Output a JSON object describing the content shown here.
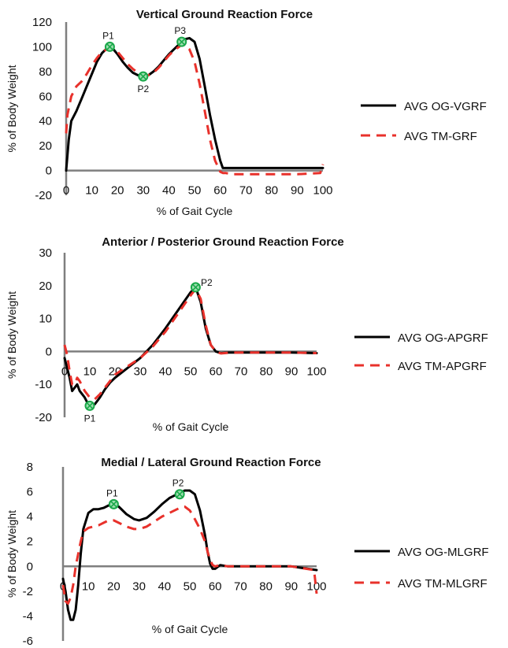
{
  "chart_data": [
    {
      "type": "line",
      "title": "Vertical Ground Reaction Force",
      "xlabel": "% of Gait Cycle",
      "ylabel": "% of Body Weight",
      "xlim": [
        0,
        100
      ],
      "ylim": [
        -20,
        120
      ],
      "xticks": [
        "0",
        "10",
        "20",
        "30",
        "40",
        "50",
        "60",
        "70",
        "80",
        "90",
        "100"
      ],
      "yticks": [
        "-20",
        "0",
        "20",
        "40",
        "60",
        "80",
        "100",
        "120"
      ],
      "legend_position": "right",
      "series": [
        {
          "name": "AVG OG-VGRF",
          "style": "solid",
          "color": "#000000",
          "x": [
            0,
            1,
            2,
            4,
            6,
            8,
            10,
            12,
            14,
            16,
            17,
            18,
            20,
            22,
            24,
            26,
            28,
            30,
            32,
            34,
            36,
            38,
            40,
            42,
            44,
            45,
            46,
            48,
            50,
            52,
            54,
            56,
            58,
            60,
            61,
            62,
            65,
            70,
            80,
            90,
            100
          ],
          "y": [
            0,
            25,
            40,
            48,
            58,
            68,
            78,
            88,
            95,
            99,
            100,
            99,
            94,
            88,
            83,
            79,
            77,
            76,
            77,
            80,
            84,
            89,
            94,
            98,
            102,
            104,
            106,
            107,
            104,
            90,
            68,
            45,
            25,
            8,
            2,
            2,
            2,
            2,
            2,
            2,
            2
          ]
        },
        {
          "name": "AVG TM-GRF",
          "style": "dashed",
          "color": "#e8312b",
          "x": [
            0,
            0.5,
            2,
            4,
            6,
            8,
            10,
            12,
            14,
            16,
            18,
            20,
            22,
            24,
            26,
            28,
            30,
            32,
            34,
            36,
            38,
            40,
            42,
            44,
            45,
            46,
            48,
            50,
            52,
            54,
            56,
            58,
            60,
            61,
            62,
            65,
            70,
            80,
            90,
            99,
            100
          ],
          "y": [
            30,
            45,
            60,
            68,
            72,
            78,
            85,
            91,
            96,
            98,
            99,
            96,
            91,
            86,
            82,
            79,
            77,
            77,
            79,
            83,
            88,
            93,
            97,
            100,
            102,
            102,
            98,
            88,
            70,
            48,
            25,
            8,
            -1,
            -2,
            -2,
            -3,
            -3,
            -3,
            -3,
            -2,
            5
          ]
        }
      ],
      "annotations": [
        {
          "label": "P1",
          "x": 17,
          "y": 100
        },
        {
          "label": "P2",
          "x": 30,
          "y": 76
        },
        {
          "label": "P3",
          "x": 45,
          "y": 104
        }
      ]
    },
    {
      "type": "line",
      "title": "Anterior / Posterior Ground Reaction Force",
      "xlabel": "% of Gait Cycle",
      "ylabel": "% of Body Weight",
      "xlim": [
        0,
        100
      ],
      "ylim": [
        -20,
        30
      ],
      "xticks": [
        "0",
        "10",
        "20",
        "30",
        "40",
        "50",
        "60",
        "70",
        "80",
        "90",
        "100"
      ],
      "yticks": [
        "-20",
        "-10",
        "0",
        "10",
        "20",
        "30"
      ],
      "legend_position": "right",
      "series": [
        {
          "name": "AVG OG-APGRF",
          "style": "solid",
          "color": "#000000",
          "x": [
            0,
            2,
            3,
            4,
            5,
            6,
            7,
            8,
            9,
            10,
            12,
            14,
            16,
            18,
            20,
            25,
            30,
            35,
            40,
            45,
            50,
            52,
            54,
            56,
            58,
            60,
            62,
            65,
            70,
            80,
            90,
            100
          ],
          "y": [
            -2,
            -8,
            -12,
            -11,
            -10,
            -12,
            -13,
            -14,
            -15.5,
            -16.5,
            -16,
            -14,
            -11.5,
            -9.5,
            -8,
            -5,
            -2,
            2,
            7,
            12.5,
            18,
            19.5,
            15,
            7,
            2,
            0,
            -0.5,
            -0.3,
            -0.3,
            -0.3,
            -0.3,
            -0.5
          ]
        },
        {
          "name": "AVG TM-APGRF",
          "style": "dashed",
          "color": "#e8312b",
          "x": [
            0,
            1,
            2,
            3,
            4,
            5,
            6,
            8,
            10,
            12,
            14,
            16,
            18,
            20,
            25,
            30,
            35,
            40,
            45,
            50,
            52,
            54,
            56,
            58,
            60,
            62,
            65,
            70,
            80,
            90,
            100
          ],
          "y": [
            2,
            -1,
            -6,
            -10,
            -10,
            -8,
            -9,
            -12,
            -14,
            -14.5,
            -13,
            -11,
            -9,
            -7,
            -4.5,
            -2,
            1.5,
            6,
            11.5,
            17,
            19,
            16,
            8,
            2,
            0,
            -0.6,
            -0.4,
            -0.3,
            -0.3,
            -0.3,
            -0.5
          ]
        }
      ],
      "annotations": [
        {
          "label": "P1",
          "x": 10,
          "y": -16.5
        },
        {
          "label": "P2",
          "x": 52,
          "y": 19.5
        }
      ]
    },
    {
      "type": "line",
      "title": "Medial / Lateral Ground Reaction Force",
      "xlabel": "% of Gait Cycle",
      "ylabel": "% of Body Weight",
      "xlim": [
        0,
        100
      ],
      "ylim": [
        -6,
        8
      ],
      "xticks": [
        "0",
        "10",
        "20",
        "30",
        "40",
        "50",
        "60",
        "70",
        "80",
        "90",
        "100"
      ],
      "yticks": [
        "-6",
        "-4",
        "-2",
        "0",
        "2",
        "4",
        "6",
        "8"
      ],
      "legend_position": "right",
      "series": [
        {
          "name": "AVG OG-MLGRF",
          "style": "solid",
          "color": "#000000",
          "x": [
            0,
            1,
            2,
            3,
            4,
            5,
            6,
            7,
            8,
            10,
            12,
            14,
            16,
            18,
            20,
            22,
            25,
            28,
            30,
            33,
            36,
            39,
            42,
            45,
            47,
            48,
            50,
            52,
            54,
            56,
            57,
            58,
            59,
            60,
            62,
            65,
            70,
            80,
            90,
            100
          ],
          "y": [
            -1,
            -2,
            -3.5,
            -4.3,
            -4.3,
            -3.5,
            -1.5,
            1,
            3,
            4.3,
            4.6,
            4.6,
            4.7,
            4.9,
            5,
            4.8,
            4.2,
            3.8,
            3.7,
            3.9,
            4.4,
            5,
            5.5,
            5.8,
            6,
            6.1,
            6.1,
            5.8,
            4.5,
            2.5,
            1.2,
            0.2,
            -0.2,
            -0.2,
            0.1,
            0,
            0,
            0,
            0,
            -0.3
          ]
        },
        {
          "name": "AVG TM-MLGRF",
          "style": "dashed",
          "color": "#e8312b",
          "x": [
            0,
            1,
            2,
            3,
            4,
            5,
            6,
            7,
            8,
            10,
            12,
            14,
            16,
            18,
            20,
            22,
            25,
            28,
            30,
            33,
            36,
            39,
            42,
            45,
            47,
            48,
            50,
            52,
            54,
            56,
            57,
            58,
            59,
            60,
            62,
            65,
            70,
            80,
            90,
            99,
            100
          ],
          "y": [
            -1.5,
            -2.8,
            -3,
            -2.5,
            -1.5,
            0,
            1,
            2,
            2.8,
            3.1,
            3.2,
            3.3,
            3.5,
            3.7,
            3.7,
            3.5,
            3.2,
            3,
            3,
            3.2,
            3.6,
            4,
            4.3,
            4.6,
            4.8,
            4.8,
            4.5,
            3.8,
            3,
            2,
            1.2,
            0.5,
            0.1,
            0,
            0.1,
            0,
            0,
            0,
            0,
            -0.3,
            -2.2
          ]
        }
      ],
      "annotations": [
        {
          "label": "P1",
          "x": 20,
          "y": 5
        },
        {
          "label": "P2",
          "x": 46,
          "y": 5.8
        }
      ]
    }
  ]
}
